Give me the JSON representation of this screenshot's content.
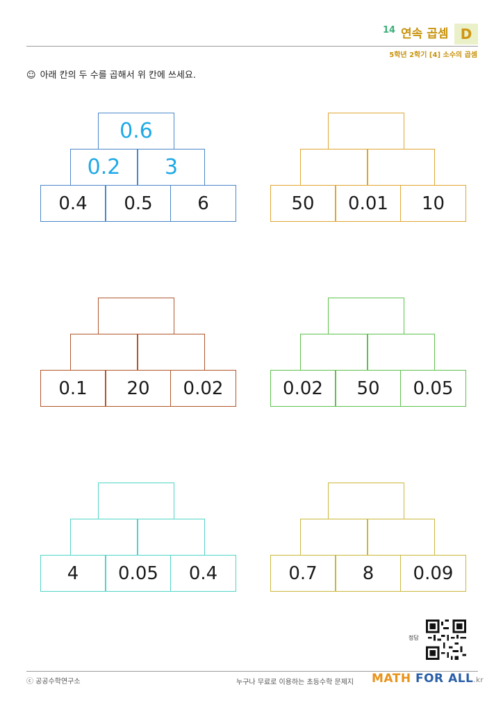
{
  "header": {
    "number": "14",
    "title": "연속 곱셈",
    "level": "D",
    "subtitle": "5학년 2학기 [4] 소수의 곱셈"
  },
  "instruction": {
    "icon": "smiley-icon",
    "text": "아래 칸의 두 수를 곱해서 위 칸에 쓰세요."
  },
  "pyramids": [
    {
      "color": "#4a86c8",
      "bottom": [
        "0.4",
        "0.5",
        "6"
      ],
      "middle": [
        "0.2",
        "3"
      ],
      "top": [
        "0.6"
      ]
    },
    {
      "color": "#e0a530",
      "bottom": [
        "50",
        "0.01",
        "10"
      ],
      "middle": [
        "",
        ""
      ],
      "top": [
        ""
      ]
    },
    {
      "color": "#b0562a",
      "bottom": [
        "0.1",
        "20",
        "0.02"
      ],
      "middle": [
        "",
        ""
      ],
      "top": [
        ""
      ]
    },
    {
      "color": "#5cc24a",
      "bottom": [
        "0.02",
        "50",
        "0.05"
      ],
      "middle": [
        "",
        ""
      ],
      "top": [
        ""
      ]
    },
    {
      "color": "#4fd4c6",
      "bottom": [
        "4",
        "0.05",
        "0.4"
      ],
      "middle": [
        "",
        ""
      ],
      "top": [
        ""
      ]
    },
    {
      "color": "#c9b83a",
      "bottom": [
        "0.7",
        "8",
        "0.09"
      ],
      "middle": [
        "",
        ""
      ],
      "top": [
        ""
      ]
    }
  ],
  "answer_label": "정답",
  "footer": {
    "copyright": "ⓒ 공공수학연구소",
    "slogan": "누구나 무료로 이용하는 초등수학 문제지",
    "brand_math": "MATH",
    "brand_for": " FOR ALL",
    "brand_kr": ".kr"
  }
}
